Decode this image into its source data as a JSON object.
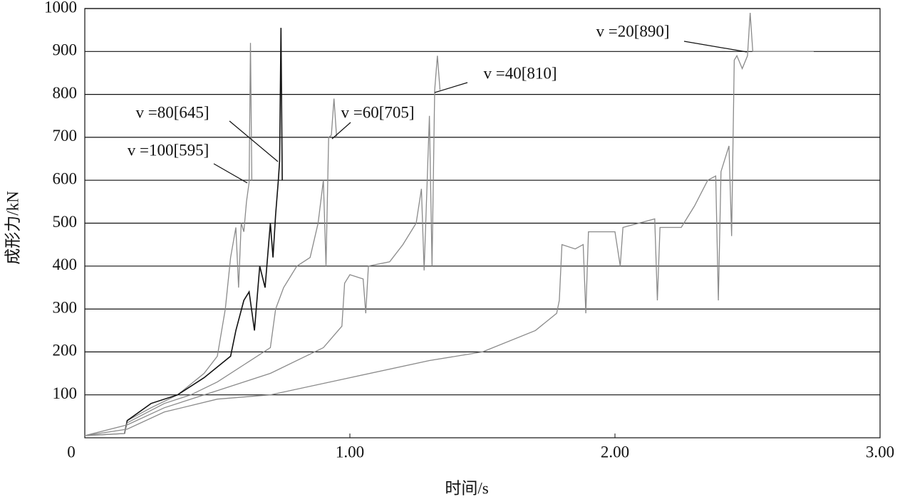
{
  "chart_data": {
    "type": "line",
    "x_label": "时间/s",
    "y_label": "成形力/kN",
    "xlim": [
      0,
      3
    ],
    "ylim": [
      0,
      1000
    ],
    "xticks": [
      0,
      {
        "value": 1,
        "label": "1.00"
      },
      {
        "value": 2,
        "label": "2.00"
      },
      {
        "value": 3,
        "label": "3.00"
      }
    ],
    "yticks": [
      100,
      200,
      300,
      400,
      500,
      600,
      700,
      800,
      900,
      1000
    ],
    "grid": true,
    "series": [
      {
        "annotation": "v =100[595]",
        "color": "#8a8a8a",
        "x": [
          0,
          0.15,
          0.16,
          0.25,
          0.35,
          0.45,
          0.5,
          0.53,
          0.55,
          0.57,
          0.58,
          0.59,
          0.6,
          0.61,
          0.62,
          0.625,
          0.63
        ],
        "values": [
          5,
          10,
          40,
          70,
          100,
          150,
          190,
          300,
          420,
          490,
          350,
          500,
          480,
          550,
          595,
          920,
          600
        ]
      },
      {
        "annotation": "v =80[645]",
        "color": "#111111",
        "x": [
          0.15,
          0.16,
          0.25,
          0.35,
          0.45,
          0.55,
          0.57,
          0.6,
          0.62,
          0.64,
          0.66,
          0.68,
          0.7,
          0.71,
          0.72,
          0.73,
          0.735,
          0.74,
          0.745
        ],
        "values": [
          10,
          40,
          80,
          100,
          140,
          190,
          250,
          320,
          340,
          250,
          400,
          350,
          500,
          420,
          520,
          600,
          645,
          955,
          600
        ]
      },
      {
        "annotation": "v =60[705]",
        "color": "#8a8a8a",
        "x": [
          0,
          0.15,
          0.16,
          0.3,
          0.4,
          0.5,
          0.6,
          0.7,
          0.72,
          0.75,
          0.8,
          0.85,
          0.88,
          0.9,
          0.91,
          0.92,
          0.93,
          0.94,
          0.95
        ],
        "values": [
          5,
          10,
          35,
          80,
          100,
          130,
          170,
          210,
          300,
          350,
          400,
          420,
          500,
          600,
          400,
          700,
          705,
          790,
          700
        ]
      },
      {
        "annotation": "v =40[810]",
        "color": "#8a8a8a",
        "x": [
          0,
          0.16,
          0.3,
          0.5,
          0.7,
          0.9,
          0.97,
          0.98,
          1.0,
          1.05,
          1.06,
          1.07,
          1.15,
          1.2,
          1.25,
          1.27,
          1.28,
          1.3,
          1.31,
          1.32,
          1.33,
          1.34
        ],
        "values": [
          5,
          30,
          70,
          110,
          150,
          210,
          260,
          360,
          380,
          370,
          290,
          400,
          410,
          450,
          500,
          580,
          390,
          750,
          400,
          810,
          890,
          810
        ]
      },
      {
        "annotation": "v =20[890]",
        "color": "#8a8a8a",
        "x": [
          0,
          0.16,
          0.3,
          0.5,
          0.7,
          1.0,
          1.3,
          1.5,
          1.7,
          1.78,
          1.79,
          1.8,
          1.85,
          1.88,
          1.89,
          1.9,
          2.0,
          2.02,
          2.03,
          2.15,
          2.16,
          2.17,
          2.25,
          2.3,
          2.35,
          2.38,
          2.39,
          2.4,
          2.43,
          2.44,
          2.45,
          2.46,
          2.48,
          2.5,
          2.51,
          2.52,
          2.75
        ],
        "values": [
          5,
          20,
          60,
          90,
          100,
          140,
          180,
          200,
          250,
          290,
          320,
          450,
          440,
          450,
          290,
          480,
          480,
          400,
          490,
          510,
          320,
          490,
          490,
          540,
          600,
          610,
          320,
          620,
          680,
          470,
          880,
          890,
          860,
          890,
          990,
          900,
          900
        ]
      }
    ]
  }
}
